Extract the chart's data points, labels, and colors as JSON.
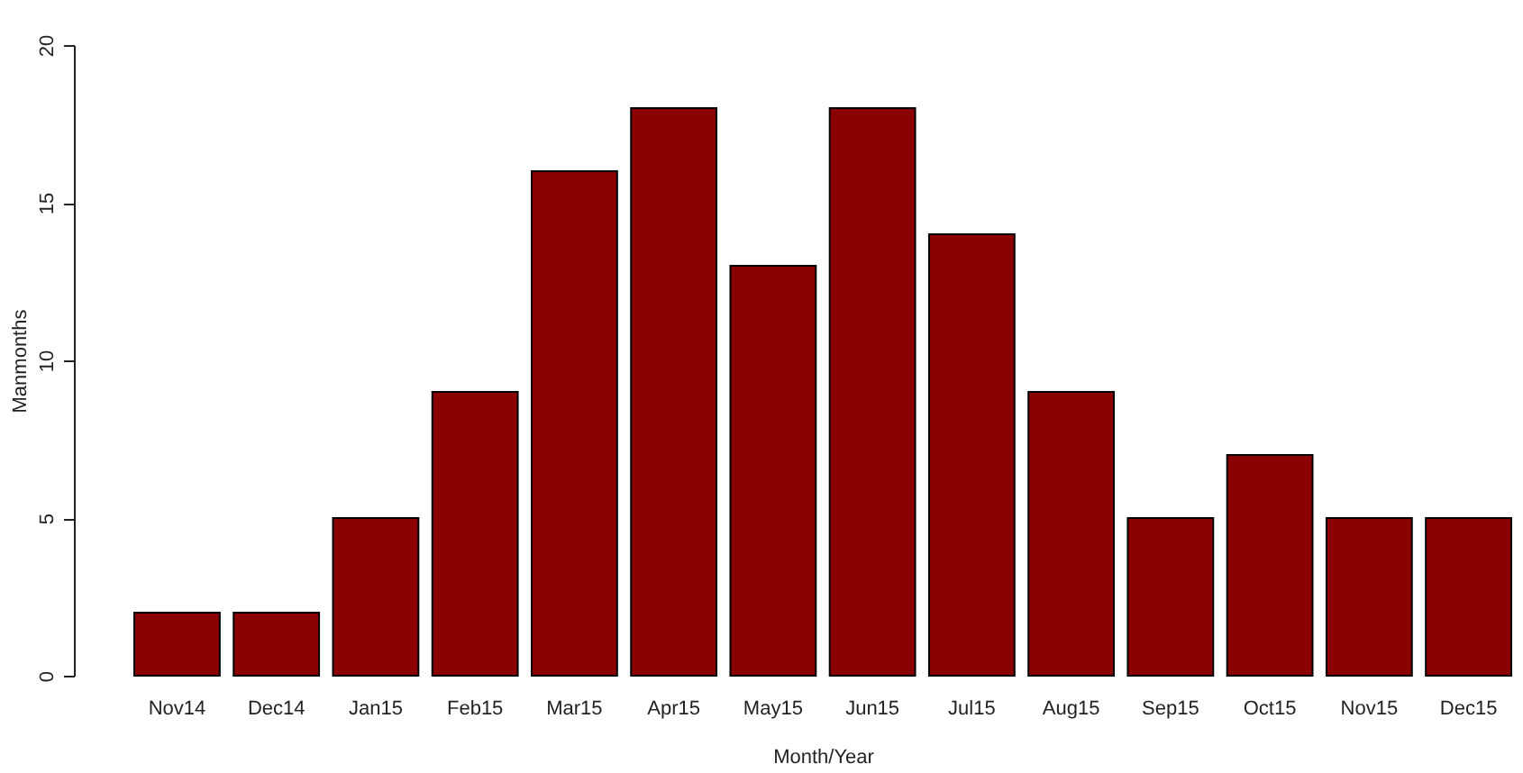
{
  "chart_data": {
    "type": "bar",
    "xlabel": "Month/Year",
    "ylabel": "Manmonths",
    "categories": [
      "Nov14",
      "Dec14",
      "Jan15",
      "Feb15",
      "Mar15",
      "Apr15",
      "May15",
      "Jun15",
      "Jul15",
      "Aug15",
      "Sep15",
      "Oct15",
      "Nov15",
      "Dec15"
    ],
    "values": [
      2,
      2,
      5,
      9,
      16,
      18,
      13,
      18,
      14,
      9,
      5,
      7,
      5,
      5
    ],
    "color": "#8b0000",
    "ylim": [
      0,
      20
    ],
    "yticks": [
      0,
      5,
      10,
      15,
      20
    ],
    "grid": false
  }
}
